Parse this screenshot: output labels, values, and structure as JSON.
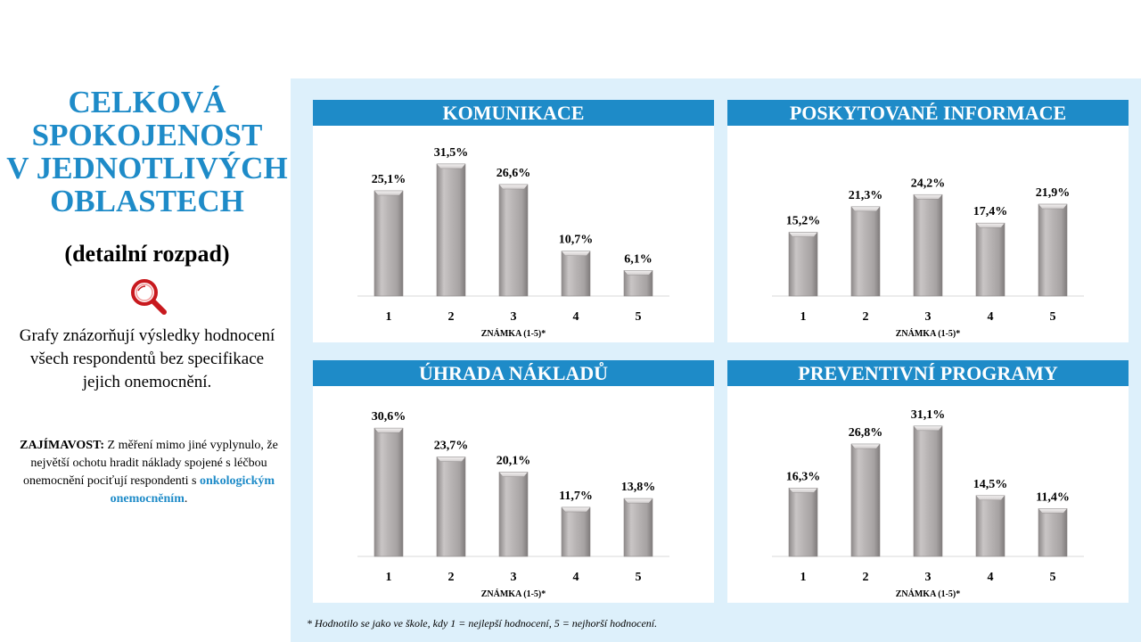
{
  "left": {
    "title_lines": [
      "CELKOVÁ",
      "SPOKOJENOST",
      "V JEDNOTLIVÝCH",
      "OBLASTECH"
    ],
    "subtitle": "(detailní rozpad)",
    "icon": "magnifier-icon",
    "description": "Grafy znázorňují výsledky hodnocení všech respondentů bez specifikace jejich onemocnění.",
    "note_label": "ZAJÍMAVOST:",
    "note_text": " Z měření mimo jiné vyplynulo, že největší ochotu hradit náklady spojené s léčbou onemocnění pociťují respondenti s ",
    "note_highlight": "onkologickým onemocněním",
    "note_end": "."
  },
  "footnote": "* Hodnotilo se jako ve škole, kdy 1 = nejlepší hodnocení, 5 = nejhorší hodnocení.",
  "colors": {
    "accent": "#1e8bc8",
    "panel_bg": "#ddf0fb",
    "bar": "#b3afaf"
  },
  "chart_data": [
    {
      "type": "bar",
      "title": "KOMUNIKACE",
      "xlabel": "ZNÁMKA (1-5)*",
      "categories": [
        "1",
        "2",
        "3",
        "4",
        "5"
      ],
      "values": [
        25.1,
        31.5,
        26.6,
        10.7,
        6.1
      ],
      "labels": [
        "25,1%",
        "31,5%",
        "26,6%",
        "10,7%",
        "6,1%"
      ]
    },
    {
      "type": "bar",
      "title": "POSKYTOVANÉ INFORMACE",
      "xlabel": "ZNÁMKA (1-5)*",
      "categories": [
        "1",
        "2",
        "3",
        "4",
        "5"
      ],
      "values": [
        15.2,
        21.3,
        24.2,
        17.4,
        21.9
      ],
      "labels": [
        "15,2%",
        "21,3%",
        "24,2%",
        "17,4%",
        "21,9%"
      ]
    },
    {
      "type": "bar",
      "title": "ÚHRADA NÁKLADŮ",
      "xlabel": "ZNÁMKA (1-5)*",
      "categories": [
        "1",
        "2",
        "3",
        "4",
        "5"
      ],
      "values": [
        30.6,
        23.7,
        20.1,
        11.7,
        13.8
      ],
      "labels": [
        "30,6%",
        "23,7%",
        "20,1%",
        "11,7%",
        "13,8%"
      ]
    },
    {
      "type": "bar",
      "title": "PREVENTIVNÍ PROGRAMY",
      "xlabel": "ZNÁMKA (1-5)*",
      "categories": [
        "1",
        "2",
        "3",
        "4",
        "5"
      ],
      "values": [
        16.3,
        26.8,
        31.1,
        14.5,
        11.4
      ],
      "labels": [
        "16,3%",
        "26,8%",
        "31,1%",
        "14,5%",
        "11,4%"
      ]
    }
  ]
}
